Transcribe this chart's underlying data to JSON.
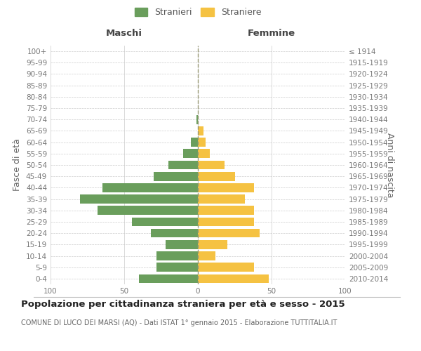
{
  "age_groups": [
    "0-4",
    "5-9",
    "10-14",
    "15-19",
    "20-24",
    "25-29",
    "30-34",
    "35-39",
    "40-44",
    "45-49",
    "50-54",
    "55-59",
    "60-64",
    "65-69",
    "70-74",
    "75-79",
    "80-84",
    "85-89",
    "90-94",
    "95-99",
    "100+"
  ],
  "birth_years": [
    "2010-2014",
    "2005-2009",
    "2000-2004",
    "1995-1999",
    "1990-1994",
    "1985-1989",
    "1980-1984",
    "1975-1979",
    "1970-1974",
    "1965-1969",
    "1960-1964",
    "1955-1959",
    "1950-1954",
    "1945-1949",
    "1940-1944",
    "1935-1939",
    "1930-1934",
    "1925-1929",
    "1920-1924",
    "1915-1919",
    "≤ 1914"
  ],
  "maschi": [
    40,
    28,
    28,
    22,
    32,
    45,
    68,
    80,
    65,
    30,
    20,
    10,
    5,
    0,
    1,
    0,
    0,
    0,
    0,
    0,
    0
  ],
  "femmine": [
    48,
    38,
    12,
    20,
    42,
    38,
    38,
    32,
    38,
    25,
    18,
    8,
    5,
    4,
    0,
    0,
    0,
    0,
    0,
    0,
    0
  ],
  "maschi_color": "#6a9e5c",
  "femmine_color": "#f5c242",
  "title": "Popolazione per cittadinanza straniera per età e sesso - 2015",
  "subtitle": "COMUNE DI LUCO DEI MARSI (AQ) - Dati ISTAT 1° gennaio 2015 - Elaborazione TUTTITALIA.IT",
  "ylabel_left": "Fasce di età",
  "ylabel_right": "Anni di nascita",
  "xlabel_maschi": "Maschi",
  "xlabel_femmine": "Femmine",
  "legend_stranieri": "Stranieri",
  "legend_straniere": "Straniere",
  "xlim": 100,
  "background_color": "#ffffff",
  "grid_color": "#cccccc",
  "zero_line_color": "#aaaaaa",
  "title_fontsize": 9.5,
  "subtitle_fontsize": 7.0,
  "tick_fontsize": 7.5,
  "label_fontsize": 9.0,
  "header_fontsize": 9.5
}
